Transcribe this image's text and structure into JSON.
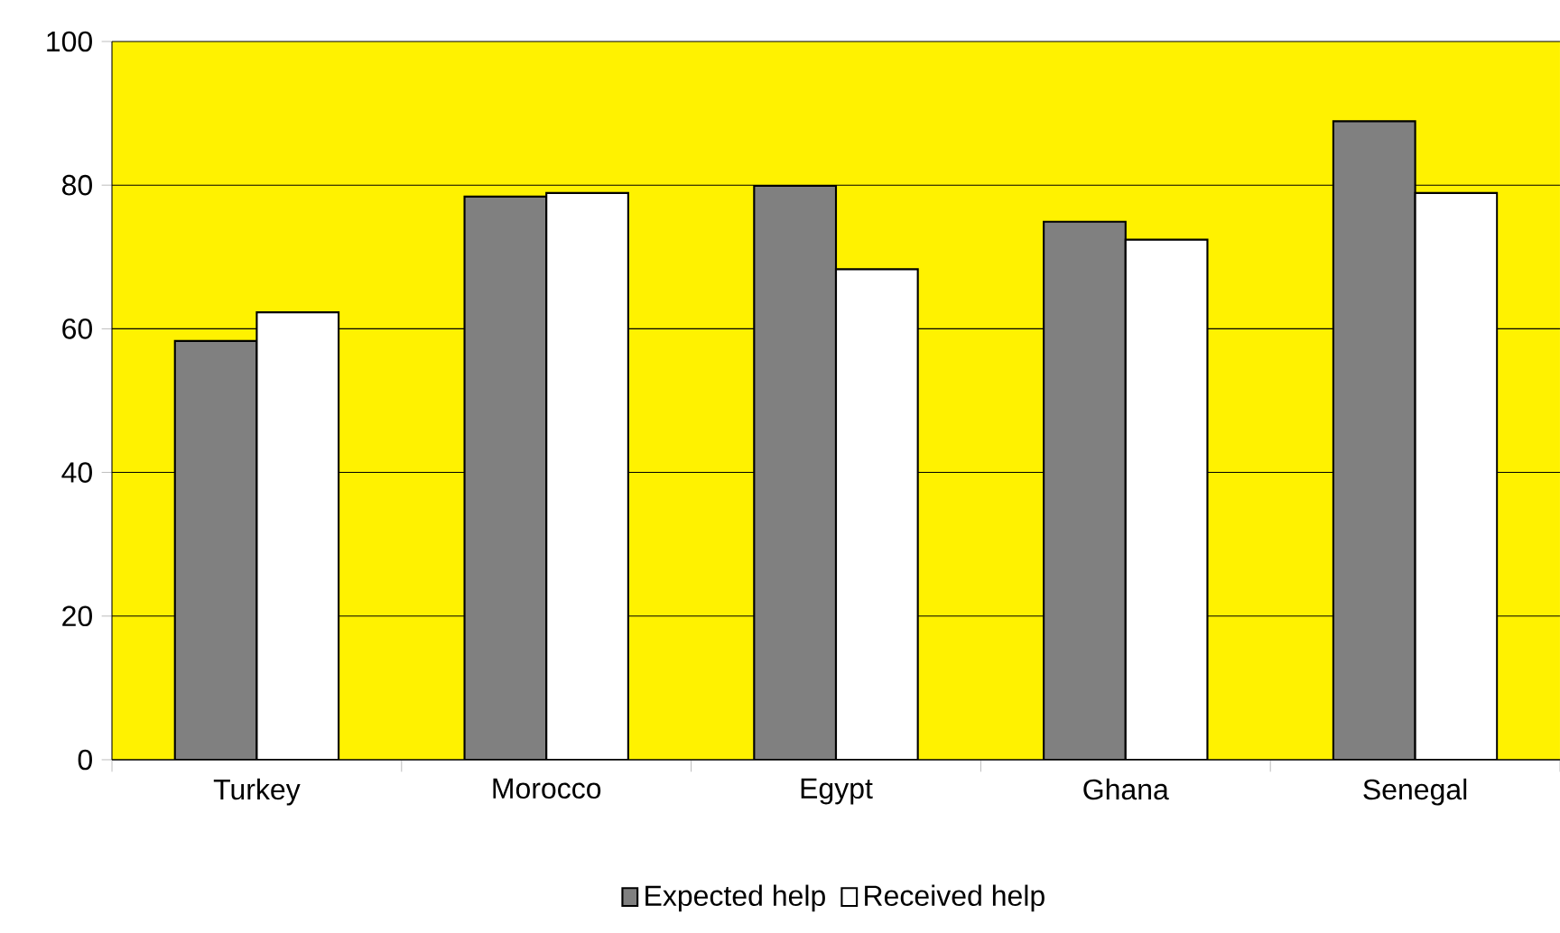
{
  "chart_data": {
    "type": "bar",
    "categories": [
      "Turkey",
      "Morocco",
      "Egypt",
      "Ghana",
      "Senegal"
    ],
    "series": [
      {
        "name": "Expected help",
        "color": "#808080",
        "values": [
          58.3,
          78.4,
          79.9,
          74.9,
          88.9
        ]
      },
      {
        "name": "Received help",
        "color": "#ffffff",
        "values": [
          62.3,
          78.9,
          68.3,
          72.4,
          78.9
        ]
      }
    ],
    "ylim": [
      0,
      100
    ],
    "yticks": [
      0,
      20,
      40,
      60,
      80,
      100
    ],
    "grid": "y",
    "legend": "bottom"
  }
}
